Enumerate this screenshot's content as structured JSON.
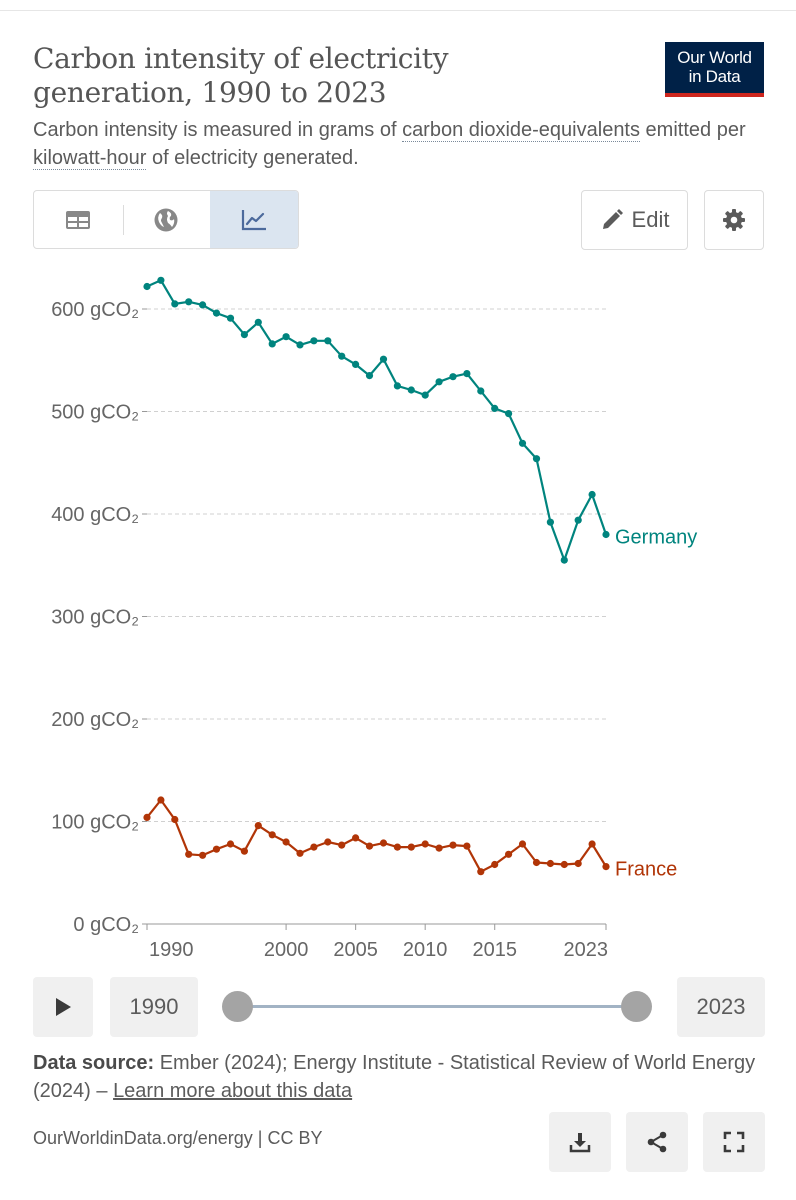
{
  "header": {
    "title": "Carbon intensity of electricity generation, 1990 to 2023",
    "subtitle_pre": "Carbon intensity is measured in grams of ",
    "subtitle_link1": "carbon dioxide-equivalents",
    "subtitle_mid": " emitted per ",
    "subtitle_link2": "kilowatt-hour",
    "subtitle_post": " of electricity generated."
  },
  "logo": {
    "line1": "Our World",
    "line2": "in Data"
  },
  "controls": {
    "tabs": [
      "table",
      "map",
      "chart"
    ],
    "active_tab": "chart",
    "edit_label": "Edit"
  },
  "timeline": {
    "start_label": "1990",
    "end_label": "2023"
  },
  "footer": {
    "source_label": "Data source:",
    "source_text": " Ember (2024); Energy Institute - Statistical Review of World Energy (2024) – ",
    "learn_more": "Learn more about this data",
    "license": "OurWorldinData.org/energy | CC BY"
  },
  "colors": {
    "germany": "#00847e",
    "france": "#b13507",
    "logo_bg": "#002147",
    "logo_bar": "#ce261e"
  },
  "chart_data": {
    "type": "line",
    "title": "Carbon intensity of electricity generation, 1990 to 2023",
    "ylim": [
      0,
      650
    ],
    "y_ticks": [
      0,
      100,
      200,
      300,
      400,
      500,
      600
    ],
    "y_tick_labels": [
      "0 gCO₂",
      "100 gCO₂",
      "200 gCO₂",
      "300 gCO₂",
      "400 gCO₂",
      "500 gCO₂",
      "600 gCO₂"
    ],
    "x_ticks": [
      1990,
      2000,
      2005,
      2010,
      2015,
      2023
    ],
    "x_tick_labels": [
      "1990",
      "2000",
      "2005",
      "2010",
      "2015",
      "2023"
    ],
    "xlim": [
      1990,
      2023
    ],
    "grid": true,
    "x": [
      1990,
      1991,
      1992,
      1993,
      1994,
      1995,
      1996,
      1997,
      1998,
      1999,
      2000,
      2001,
      2002,
      2003,
      2004,
      2005,
      2006,
      2007,
      2008,
      2009,
      2010,
      2011,
      2012,
      2013,
      2014,
      2015,
      2016,
      2017,
      2018,
      2019,
      2020,
      2021,
      2022,
      2023
    ],
    "series": [
      {
        "name": "Germany",
        "values": [
          622,
          628,
          605,
          607,
          604,
          596,
          591,
          575,
          587,
          566,
          573,
          565,
          569,
          569,
          554,
          546,
          535,
          551,
          525,
          521,
          516,
          529,
          534,
          537,
          520,
          503,
          498,
          469,
          454,
          392,
          355,
          394,
          419,
          380
        ]
      },
      {
        "name": "France",
        "values": [
          104,
          121,
          102,
          68,
          67,
          73,
          78,
          71,
          96,
          87,
          80,
          69,
          75,
          80,
          77,
          84,
          76,
          79,
          75,
          75,
          78,
          74,
          77,
          76,
          51,
          58,
          68,
          78,
          60,
          59,
          58,
          59,
          78,
          56
        ]
      }
    ]
  }
}
